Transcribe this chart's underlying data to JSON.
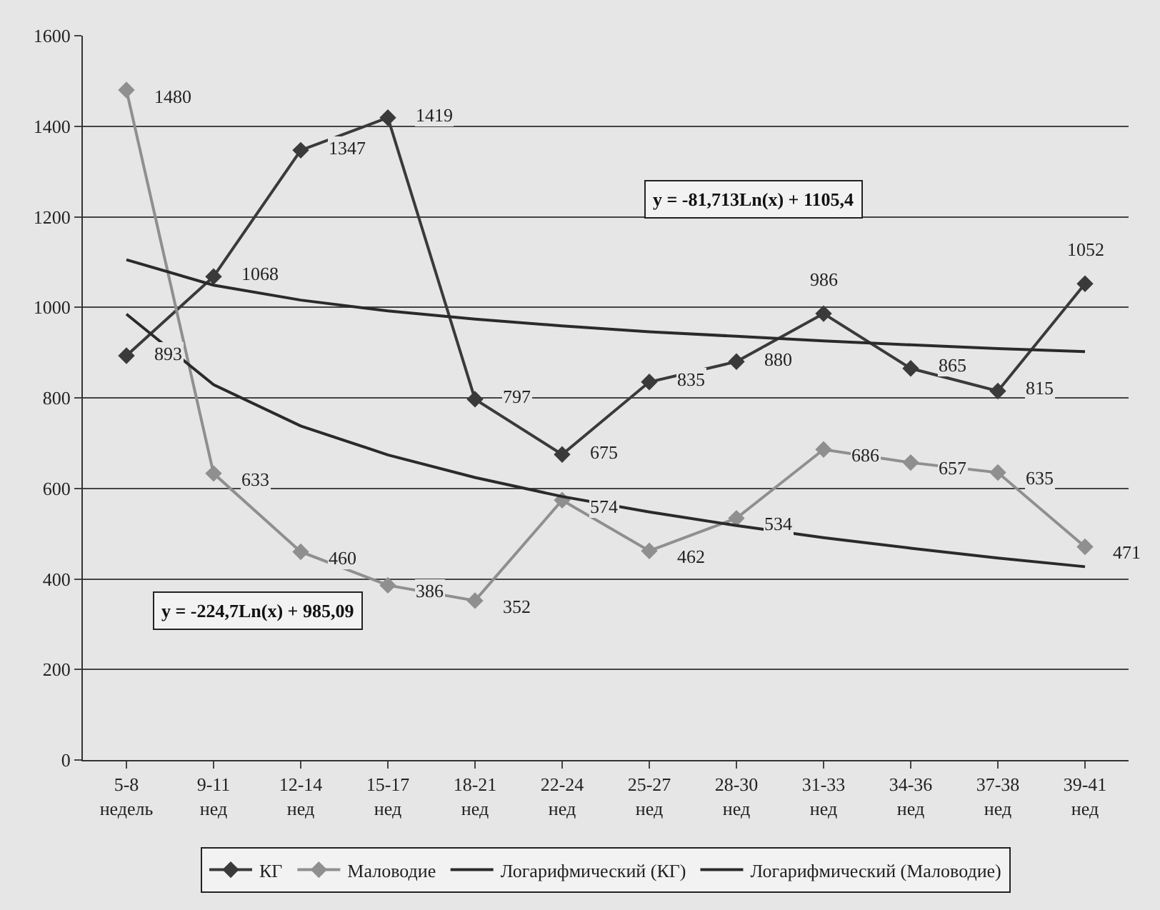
{
  "chart_data": {
    "type": "line",
    "categories": [
      "5-8\nнедель",
      "9-11\nнед",
      "12-14\nнед",
      "15-17\nнед",
      "18-21\nнед",
      "22-24\nнед",
      "25-27\nнед",
      "28-30\nнед",
      "31-33\nнед",
      "34-36\nнед",
      "37-38\nнед",
      "39-41\nнед"
    ],
    "series": [
      {
        "name": "КГ",
        "color": "#3a3a3a",
        "marker": "diamond",
        "value_labels": [
          "893",
          "1068",
          "1347",
          "1419",
          "797",
          "675",
          "835",
          "880",
          "986",
          "865",
          "815",
          "1052"
        ],
        "values": [
          893,
          1068,
          1347,
          1419,
          797,
          675,
          835,
          880,
          986,
          865,
          815,
          1052
        ]
      },
      {
        "name": "Маловодие",
        "color": "#8f8f8f",
        "marker": "diamond",
        "value_labels": [
          "1480",
          "633",
          "460",
          "386",
          "352",
          "574",
          "462",
          "534",
          "686",
          "657",
          "635",
          "471"
        ],
        "values": [
          1480,
          633,
          460,
          386,
          352,
          574,
          462,
          534,
          686,
          657,
          635,
          471
        ]
      },
      {
        "name": "Логарифмический (КГ)",
        "color": "#2a2a2a",
        "marker": "none",
        "values": [
          1105,
          1049,
          1016,
          992,
          974,
          959,
          946,
          936,
          926,
          917,
          909,
          902
        ]
      },
      {
        "name": "Логарифмический (Маловодие)",
        "color": "#2a2a2a",
        "marker": "none",
        "values": [
          985,
          829,
          738,
          674,
          624,
          582,
          548,
          518,
          491,
          468,
          446,
          427
        ]
      }
    ],
    "annotations": [
      "y = -81,713Ln(x) + 1105,4",
      "y = -224,7Ln(x) + 985,09"
    ],
    "ylim": [
      0,
      1600
    ],
    "yticks": [
      0,
      200,
      400,
      600,
      800,
      1000,
      1200,
      1400,
      1600
    ],
    "grid": "y",
    "legend": "bottom"
  }
}
